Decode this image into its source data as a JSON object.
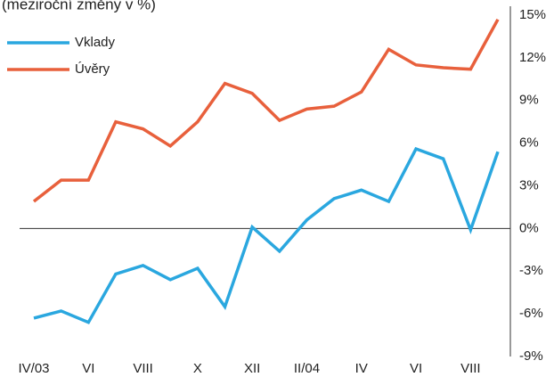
{
  "chart_data": {
    "type": "line",
    "title": "(meziroční změny v %)",
    "categories": [
      "IV/03",
      null,
      "VI",
      null,
      "VIII",
      null,
      "X",
      null,
      "XII",
      null,
      "II/04",
      null,
      "IV",
      null,
      "VI",
      null,
      "VIII",
      null
    ],
    "series": [
      {
        "name": "Vklady",
        "color": "#2aa7df",
        "values": [
          -6.3,
          -5.8,
          -6.6,
          -3.2,
          -2.6,
          -3.6,
          -2.8,
          -5.5,
          0.1,
          -1.6,
          0.6,
          2.1,
          2.7,
          1.9,
          5.6,
          4.9,
          -0.1,
          5.4
        ]
      },
      {
        "name": "Úvěry",
        "color": "#e8603c",
        "values": [
          1.9,
          3.4,
          3.4,
          7.5,
          7.0,
          5.8,
          7.5,
          10.2,
          9.5,
          7.6,
          8.4,
          8.6,
          9.6,
          12.6,
          11.5,
          11.3,
          11.2,
          14.7
        ]
      }
    ],
    "ylim": [
      -9,
      15
    ],
    "yticks": [
      {
        "value": -9,
        "label": "-9%"
      },
      {
        "value": -6,
        "label": "-6%"
      },
      {
        "value": -3,
        "label": "-3%"
      },
      {
        "value": 0,
        "label": "0%"
      },
      {
        "value": 3,
        "label": "3%"
      },
      {
        "value": 6,
        "label": "6%"
      },
      {
        "value": 9,
        "label": "9%"
      },
      {
        "value": 12,
        "label": "12%"
      },
      {
        "value": 15,
        "label": "15%"
      }
    ],
    "y_axis_side": "right",
    "zero_line": true,
    "legend": "upper left"
  }
}
